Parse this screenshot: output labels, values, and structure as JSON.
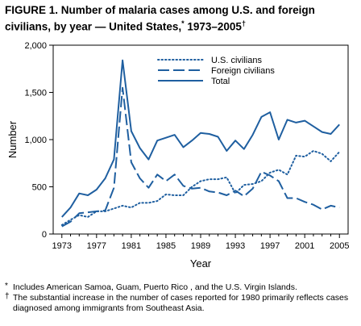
{
  "figure": {
    "title_main": "FIGURE 1. Number of malaria cases among U.S. and foreign civilians, by year — United States,",
    "title_mark": "*",
    "title_years": " 1973–2005",
    "title_dagger": "†"
  },
  "footnotes": [
    {
      "mark": "*",
      "text": "Includes American Samoa, Guam, Puerto Rico , and the U.S. Virgin Islands."
    },
    {
      "mark": "†",
      "text": "The substantial increase in the number of cases reported for 1980 primarily reflects cases diagnosed among immigrants from Southeast Asia."
    }
  ],
  "chart_data": {
    "type": "line",
    "xlabel": "Year",
    "ylabel": "Number",
    "xlim": [
      1972,
      2006
    ],
    "ylim": [
      0,
      2000
    ],
    "x_ticks": [
      1973,
      1977,
      1981,
      1985,
      1989,
      1993,
      1997,
      2001,
      2005
    ],
    "y_ticks": [
      0,
      500,
      1000,
      1500,
      2000
    ],
    "y_tick_labels": [
      "0",
      "500",
      "1,000",
      "1,500",
      "2,000"
    ],
    "legend_position": "top-center",
    "x": [
      1973,
      1974,
      1975,
      1976,
      1977,
      1978,
      1979,
      1980,
      1981,
      1982,
      1983,
      1984,
      1985,
      1986,
      1987,
      1988,
      1989,
      1990,
      1991,
      1992,
      1993,
      1994,
      1995,
      1996,
      1997,
      1998,
      1999,
      2000,
      2001,
      2002,
      2003,
      2004,
      2005
    ],
    "series": [
      {
        "name": "U.S. civilians",
        "style": "dotted",
        "color": "#1f5fa0",
        "values": [
          95,
          150,
          200,
          180,
          240,
          240,
          270,
          300,
          280,
          330,
          330,
          350,
          420,
          410,
          410,
          500,
          560,
          580,
          580,
          600,
          430,
          520,
          530,
          560,
          650,
          680,
          630,
          830,
          820,
          880,
          850,
          770,
          870
        ]
      },
      {
        "name": "Foreign civilians",
        "style": "dashed",
        "color": "#1f5fa0",
        "values": [
          80,
          130,
          220,
          230,
          240,
          250,
          490,
          1550,
          760,
          590,
          490,
          630,
          560,
          630,
          510,
          480,
          490,
          450,
          440,
          410,
          460,
          400,
          480,
          660,
          620,
          560,
          380,
          380,
          340,
          310,
          260,
          300,
          280
        ]
      },
      {
        "name": "Total",
        "style": "solid",
        "color": "#1f5fa0",
        "values": [
          180,
          280,
          430,
          410,
          470,
          590,
          790,
          1840,
          1090,
          910,
          790,
          990,
          1020,
          1050,
          920,
          990,
          1070,
          1060,
          1030,
          880,
          990,
          900,
          1050,
          1240,
          1290,
          1000,
          1210,
          1180,
          1200,
          1140,
          1080,
          1060,
          1160
        ]
      }
    ]
  }
}
